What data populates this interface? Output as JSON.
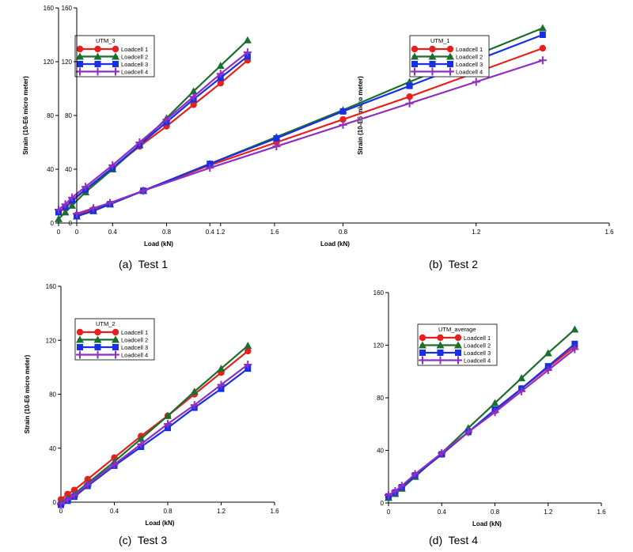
{
  "series_colors": [
    "#e8201d",
    "#1a6e2e",
    "#1730e6",
    "#8f2fc2"
  ],
  "series_markers": [
    "circle",
    "triangle",
    "square",
    "plus"
  ],
  "chart_data": [
    {
      "type": "line",
      "caption": "(a)  Test 1",
      "legend_title": "UTM_3",
      "xlabel": "Load (kN)",
      "ylabel": "Strain (10-E6 micro meter)",
      "xlim": [
        0,
        1.6
      ],
      "ylim": [
        0,
        160
      ],
      "xticks": [
        0,
        0.4,
        0.8,
        1.2,
        1.6
      ],
      "xtick_labels": [
        "0",
        "0.4",
        "0.8",
        "1.2",
        "1.6"
      ],
      "yticks": [
        0,
        40,
        80,
        120,
        160
      ],
      "ytick_labels": [
        "0",
        "40",
        "80",
        "120",
        "160"
      ],
      "x": [
        0,
        0.05,
        0.1,
        0.2,
        0.4,
        0.6,
        0.8,
        1.0,
        1.2,
        1.4
      ],
      "series": [
        {
          "name": "Loadcell 1",
          "values": [
            8,
            11,
            16,
            25,
            41,
            57,
            72,
            88,
            104,
            121
          ]
        },
        {
          "name": "Loadcell 2",
          "values": [
            3,
            8,
            13,
            23,
            40,
            58,
            78,
            98,
            117,
            136
          ]
        },
        {
          "name": "Loadcell 3",
          "values": [
            8,
            12,
            17,
            25,
            41,
            58,
            75,
            92,
            108,
            124
          ]
        },
        {
          "name": "Loadcell 4",
          "values": [
            10,
            14,
            19,
            27,
            43,
            60,
            77,
            94,
            111,
            127
          ]
        }
      ]
    },
    {
      "type": "line",
      "caption": "(b)  Test 2",
      "legend_title": "UTM_1",
      "xlabel": "Load (kN)",
      "ylabel": "Strain (10-E6 micro meter)",
      "xlim": [
        0,
        1.6
      ],
      "ylim": [
        0,
        160
      ],
      "xticks": [
        0,
        0.4,
        0.8,
        1.2,
        1.6
      ],
      "xtick_labels": [
        "0",
        "0.4",
        "0.8",
        "1.2",
        "1.6"
      ],
      "yticks": [
        0,
        40,
        80,
        120,
        160
      ],
      "ytick_labels": [
        "0",
        "40",
        "80",
        "120",
        "160"
      ],
      "x": [
        0,
        0.05,
        0.1,
        0.2,
        0.4,
        0.6,
        0.8,
        1.0,
        1.2,
        1.4
      ],
      "series": [
        {
          "name": "Loadcell 1",
          "values": [
            6,
            10,
            14,
            24,
            43,
            60,
            77,
            94,
            112,
            130
          ]
        },
        {
          "name": "Loadcell 2",
          "values": [
            5,
            9,
            14,
            24,
            44,
            64,
            84,
            105,
            125,
            145
          ]
        },
        {
          "name": "Loadcell 3",
          "values": [
            5,
            9,
            14,
            24,
            44,
            63,
            83,
            102,
            121,
            140
          ]
        },
        {
          "name": "Loadcell 4",
          "values": [
            7,
            11,
            15,
            24,
            41,
            57,
            73,
            89,
            105,
            121
          ]
        }
      ]
    },
    {
      "type": "line",
      "caption": "(c)  Test 3",
      "legend_title": "UTM_2",
      "xlabel": "Load (kN)",
      "ylabel": "Strain (10-E6 micro meter)",
      "xlim": [
        0,
        1.6
      ],
      "ylim": [
        0,
        160
      ],
      "xticks": [
        0,
        0.4,
        0.8,
        1.2,
        1.6
      ],
      "xtick_labels": [
        "0",
        "0.4",
        "0.8",
        "1.2",
        "1.6"
      ],
      "yticks": [
        0,
        40,
        80,
        120,
        160
      ],
      "ytick_labels": [
        "0",
        "40",
        "80",
        "120",
        "160"
      ],
      "x": [
        0,
        0.05,
        0.1,
        0.2,
        0.4,
        0.6,
        0.8,
        1.0,
        1.2,
        1.4
      ],
      "series": [
        {
          "name": "Loadcell 1",
          "values": [
            2,
            6,
            9,
            17,
            33,
            49,
            64,
            80,
            96,
            112
          ]
        },
        {
          "name": "Loadcell 2",
          "values": [
            0,
            3,
            6,
            14,
            30,
            47,
            64,
            82,
            99,
            116
          ]
        },
        {
          "name": "Loadcell 3",
          "values": [
            -2,
            1,
            4,
            12,
            27,
            41,
            55,
            70,
            84,
            99
          ]
        },
        {
          "name": "Loadcell 4",
          "values": [
            -1,
            2,
            5,
            13,
            28,
            43,
            58,
            72,
            87,
            102
          ]
        }
      ]
    },
    {
      "type": "line",
      "caption": "(d)  Test 4",
      "legend_title": "UTM_average",
      "xlabel": "Load (kN)",
      "ylabel": "",
      "xlim": [
        0,
        1.6
      ],
      "ylim": [
        0,
        160
      ],
      "xticks": [
        0,
        0.4,
        0.8,
        1.2,
        1.6
      ],
      "xtick_labels": [
        "0",
        "0.4",
        "0.8",
        "1.2",
        "1.6"
      ],
      "yticks": [
        0,
        40,
        80,
        120,
        160
      ],
      "ytick_labels": [
        "0",
        "40",
        "80",
        "120",
        "160"
      ],
      "x": [
        0,
        0.05,
        0.1,
        0.2,
        0.4,
        0.6,
        0.8,
        1.0,
        1.2,
        1.4
      ],
      "series": [
        {
          "name": "Loadcell 1",
          "values": [
            5,
            8,
            12,
            21,
            37,
            54,
            70,
            87,
            103,
            119
          ]
        },
        {
          "name": "Loadcell 2",
          "values": [
            4,
            7,
            11,
            20,
            38,
            57,
            76,
            95,
            114,
            132
          ]
        },
        {
          "name": "Loadcell 3",
          "values": [
            5,
            8,
            12,
            21,
            37,
            54,
            71,
            87,
            104,
            121
          ]
        },
        {
          "name": "Loadcell 4",
          "values": [
            6,
            9,
            13,
            22,
            38,
            54,
            69,
            85,
            101,
            117
          ]
        }
      ]
    }
  ]
}
